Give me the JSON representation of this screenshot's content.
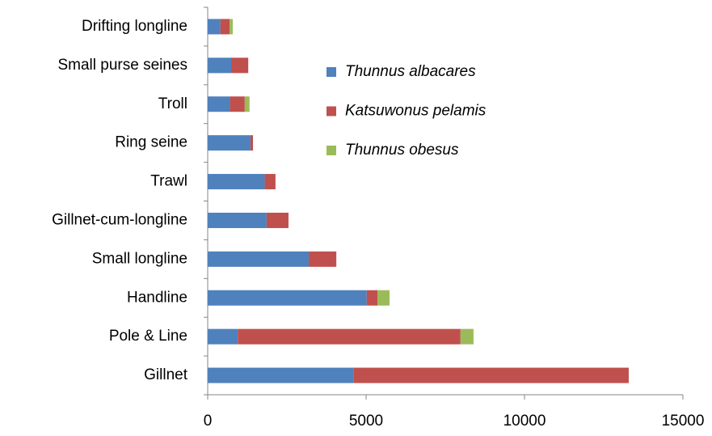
{
  "chart_data": {
    "type": "stacked_bar_horizontal",
    "categories": [
      "Drifting longline",
      "Small purse seines",
      "Troll",
      "Ring seine",
      "Trawl",
      "Gillnet-cum-longline",
      "Small longline",
      "Handline",
      "Pole & Line",
      "Gillnet"
    ],
    "series": [
      {
        "name": "Thunnus albacares",
        "color": "#4f81bd",
        "values": [
          400,
          740,
          700,
          1350,
          1800,
          1860,
          3190,
          5020,
          950,
          4600
        ]
      },
      {
        "name": "Katsuwonus pelamis",
        "color": "#c0504d",
        "values": [
          290,
          540,
          470,
          80,
          340,
          690,
          870,
          340,
          7030,
          8690
        ]
      },
      {
        "name": "Thunnus obesus",
        "color": "#9bbb59",
        "values": [
          100,
          0,
          150,
          0,
          0,
          0,
          0,
          380,
          410,
          0
        ]
      }
    ],
    "xlim": [
      0,
      15000
    ],
    "xticks": [
      0,
      5000,
      10000,
      15000
    ],
    "legend": "upper right"
  }
}
